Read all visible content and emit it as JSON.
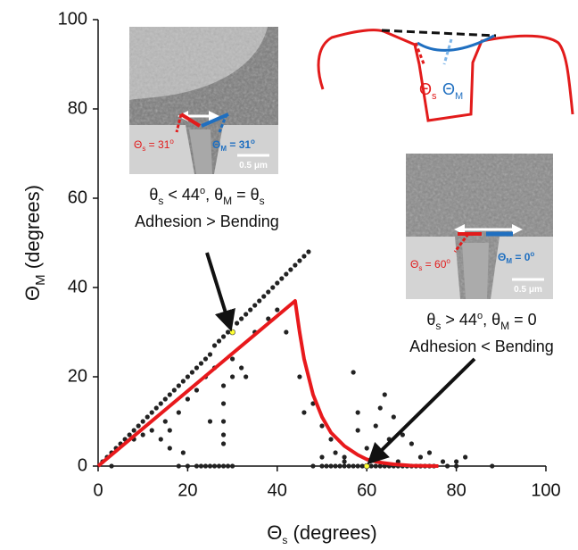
{
  "chart_data": {
    "type": "scatter",
    "x_label": [
      "Θ",
      "s",
      " (degrees)"
    ],
    "y_label": [
      "Θ",
      "M",
      " (degrees)"
    ],
    "xlim": [
      0,
      100
    ],
    "xticks": [
      0,
      20,
      40,
      60,
      80,
      100
    ],
    "ylim": [
      0,
      100
    ],
    "yticks": [
      0,
      20,
      40,
      60,
      80,
      100
    ],
    "series": [
      {
        "color": "#222222",
        "x": [
          1,
          2,
          3,
          4,
          5,
          6,
          7,
          8,
          9,
          10,
          11,
          12,
          13,
          14,
          15,
          16,
          17,
          18,
          19,
          20,
          21,
          22,
          23,
          24,
          25,
          26,
          27,
          28,
          29,
          31,
          32,
          33,
          34,
          35,
          36,
          37,
          38,
          39,
          40,
          41,
          42,
          43,
          44,
          45,
          46,
          47
        ],
        "values": [
          1,
          2,
          3,
          4,
          5,
          6,
          7,
          8,
          9,
          10,
          11,
          12,
          13,
          14,
          15,
          16,
          17,
          18,
          19,
          20,
          21,
          22,
          23,
          24,
          25,
          27,
          28,
          29,
          30,
          32,
          33,
          34,
          35,
          36,
          37,
          38,
          39,
          40,
          41,
          42,
          43,
          44,
          45,
          46,
          47,
          48
        ]
      },
      {
        "color": "#222222",
        "x": [
          8,
          10,
          12,
          14,
          15,
          16,
          18,
          20,
          22,
          24,
          26,
          28,
          28,
          28,
          28,
          28,
          30,
          30,
          32,
          35,
          38,
          40,
          16,
          19,
          25,
          33,
          42
        ],
        "values": [
          6,
          7,
          8,
          6,
          10,
          8,
          12,
          15,
          17,
          20,
          22,
          18,
          14,
          10,
          7,
          5,
          20,
          24,
          22,
          30,
          33,
          35,
          4,
          3,
          10,
          20,
          30
        ]
      },
      {
        "color": "#222222",
        "x": [
          45,
          46,
          48,
          50,
          52,
          53,
          55,
          57,
          58,
          60,
          62,
          64,
          65,
          66,
          68,
          70,
          72,
          74,
          77,
          80,
          82,
          63,
          58,
          50,
          55,
          67
        ],
        "values": [
          20,
          12,
          14,
          9,
          6,
          3,
          2,
          21,
          8,
          4,
          9,
          16,
          6,
          11,
          7,
          5,
          2,
          3,
          1,
          1,
          2,
          13,
          12,
          2,
          1,
          1
        ]
      },
      {
        "color": "#222222",
        "x": [
          3,
          18,
          20,
          22,
          23,
          24,
          25,
          26,
          27,
          28,
          29,
          30,
          48,
          50,
          51,
          52,
          53,
          54,
          55,
          56,
          57,
          58,
          59,
          61,
          62,
          63,
          64,
          65,
          66,
          67,
          68,
          69,
          70,
          71,
          72,
          73,
          74,
          75,
          78,
          80,
          88
        ],
        "values": [
          0,
          0,
          0,
          0,
          0,
          0,
          0,
          0,
          0,
          0,
          0,
          0,
          0,
          0,
          0,
          0,
          0,
          0,
          0,
          0,
          0,
          0,
          0,
          0,
          0,
          0,
          0,
          0,
          0,
          0,
          0,
          0,
          0,
          0,
          0,
          0,
          0,
          0,
          0,
          0,
          0
        ]
      },
      {
        "color": "#e8191c",
        "type": "line",
        "x": [
          0,
          44,
          45,
          46,
          48,
          50,
          52,
          55,
          58,
          60,
          63,
          66,
          70,
          76
        ],
        "values": [
          0,
          37,
          30,
          24,
          16,
          11,
          7.5,
          4.5,
          2.5,
          1.5,
          0.8,
          0.4,
          0.1,
          0
        ]
      },
      {
        "color": "#ffff33",
        "x": [
          30,
          60
        ],
        "values": [
          30,
          0
        ]
      }
    ],
    "annotations": {
      "left": {
        "line1": [
          "θ",
          "s",
          " < 44",
          "o",
          ", θ",
          "M",
          " = θ",
          "s"
        ],
        "line2": "Adhesion > Bending"
      },
      "right": {
        "line1": [
          "θ",
          "s",
          " > 44",
          "o",
          ", θ",
          "M",
          " = 0"
        ],
        "line2": "Adhesion < Bending"
      },
      "inset_left": {
        "theta_s": [
          "Θ",
          "s",
          " = 31",
          "o"
        ],
        "theta_m": [
          "Θ",
          "M",
          " = 31",
          "o"
        ],
        "scale": "0.5 μm"
      },
      "inset_right": {
        "theta_s": [
          "Θ",
          "s",
          " = 60",
          "o"
        ],
        "theta_m": [
          "Θ",
          "M",
          " = 0",
          "o"
        ],
        "scale": "0.5 μm"
      },
      "schematic": {
        "theta_s": [
          "Θ",
          "s"
        ],
        "theta_m": [
          "Θ",
          "M"
        ]
      }
    }
  }
}
